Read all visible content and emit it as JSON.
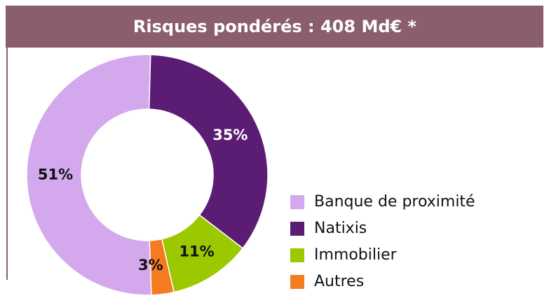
{
  "chart_data": {
    "type": "donut",
    "title": "Risques pondérés : 408 Md€ *",
    "categories": [
      "Banque de proximité",
      "Natixis",
      "Immobilier",
      "Autres"
    ],
    "values": [
      51,
      35,
      11,
      3
    ],
    "value_labels": [
      "51%",
      "35%",
      "11%",
      "3%"
    ],
    "colors": [
      "#d3a8ec",
      "#5b1d73",
      "#9cc800",
      "#f47b20"
    ],
    "legend": "right"
  }
}
